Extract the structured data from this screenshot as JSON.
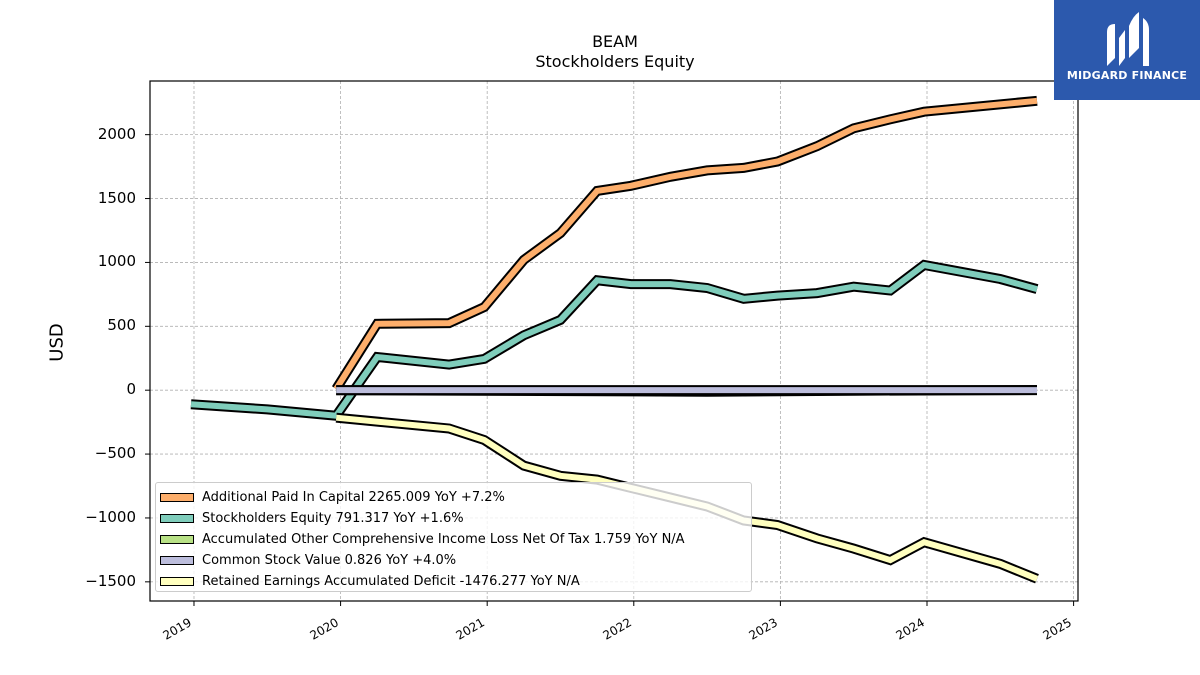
{
  "chart_data": {
    "type": "line",
    "title": "BEAM",
    "subtitle": "Stockholders  Equity",
    "ylabel": "USD",
    "xlabel": "",
    "ylim": [
      -1650,
      2420
    ],
    "xlim": [
      2018.7,
      2025.03
    ],
    "yticks": [
      2000,
      1500,
      1000,
      500,
      0,
      -500,
      -1000,
      -1500
    ],
    "ytick_labels": [
      "2000",
      "1500",
      "1000",
      "500",
      "0",
      "−500",
      "−1000",
      "−1500"
    ],
    "xticks": [
      2019,
      2020,
      2021,
      2022,
      2023,
      2024,
      2025
    ],
    "xtick_labels": [
      "2019",
      "2020",
      "2021",
      "2022",
      "2023",
      "2024",
      "2025"
    ],
    "grid": true,
    "legend_position": "lower-left",
    "series": [
      {
        "name": "Additional Paid In Capital  2265.009 YoY +7.2%",
        "color": "#fdae6b",
        "points": [
          [
            2019.97,
            10
          ],
          [
            2020.25,
            520
          ],
          [
            2020.74,
            525
          ],
          [
            2020.98,
            650
          ],
          [
            2021.25,
            1020
          ],
          [
            2021.5,
            1230
          ],
          [
            2021.75,
            1560
          ],
          [
            2021.98,
            1600
          ],
          [
            2022.25,
            1670
          ],
          [
            2022.5,
            1720
          ],
          [
            2022.75,
            1740
          ],
          [
            2022.98,
            1790
          ],
          [
            2023.25,
            1910
          ],
          [
            2023.5,
            2050
          ],
          [
            2023.75,
            2120
          ],
          [
            2023.98,
            2180
          ],
          [
            2024.75,
            2265
          ]
        ]
      },
      {
        "name": "Stockholders Equity  791.317 YoY +1.6%",
        "color": "#7fcdbb",
        "points": [
          [
            2018.98,
            -110
          ],
          [
            2019.5,
            -150
          ],
          [
            2019.97,
            -200
          ],
          [
            2020.25,
            260
          ],
          [
            2020.74,
            200
          ],
          [
            2020.98,
            245
          ],
          [
            2021.25,
            430
          ],
          [
            2021.5,
            550
          ],
          [
            2021.75,
            860
          ],
          [
            2021.98,
            830
          ],
          [
            2022.25,
            830
          ],
          [
            2022.5,
            800
          ],
          [
            2022.75,
            715
          ],
          [
            2022.98,
            740
          ],
          [
            2023.25,
            760
          ],
          [
            2023.5,
            810
          ],
          [
            2023.75,
            780
          ],
          [
            2023.98,
            980
          ],
          [
            2024.5,
            870
          ],
          [
            2024.75,
            791
          ]
        ]
      },
      {
        "name": "Accumulated Other Comprehensive Income Loss Net Of Tax  1.759 YoY N/A",
        "color": "#b8e186",
        "points": [
          [
            2019.97,
            0
          ],
          [
            2022.5,
            -12
          ],
          [
            2022.75,
            -10
          ],
          [
            2023.5,
            -4
          ],
          [
            2024.75,
            1.759
          ]
        ]
      },
      {
        "name": "Common Stock Value  0.826 YoY +4.0%",
        "color": "#bcbddc",
        "points": [
          [
            2019.97,
            1
          ],
          [
            2024.75,
            1
          ]
        ]
      },
      {
        "name": "Retained Earnings Accumulated Deficit  -1476.277 YoY N/A",
        "color": "#ffffbf",
        "points": [
          [
            2019.97,
            -215
          ],
          [
            2020.74,
            -300
          ],
          [
            2020.98,
            -390
          ],
          [
            2021.25,
            -590
          ],
          [
            2021.5,
            -670
          ],
          [
            2021.75,
            -700
          ],
          [
            2021.98,
            -765
          ],
          [
            2022.25,
            -840
          ],
          [
            2022.5,
            -910
          ],
          [
            2022.75,
            -1020
          ],
          [
            2022.98,
            -1055
          ],
          [
            2023.25,
            -1160
          ],
          [
            2023.5,
            -1240
          ],
          [
            2023.75,
            -1330
          ],
          [
            2023.98,
            -1190
          ],
          [
            2024.5,
            -1360
          ],
          [
            2024.75,
            -1476
          ]
        ]
      }
    ]
  },
  "logo": {
    "text": "MIDGARD FINANCE",
    "color": "#2c59ad"
  }
}
